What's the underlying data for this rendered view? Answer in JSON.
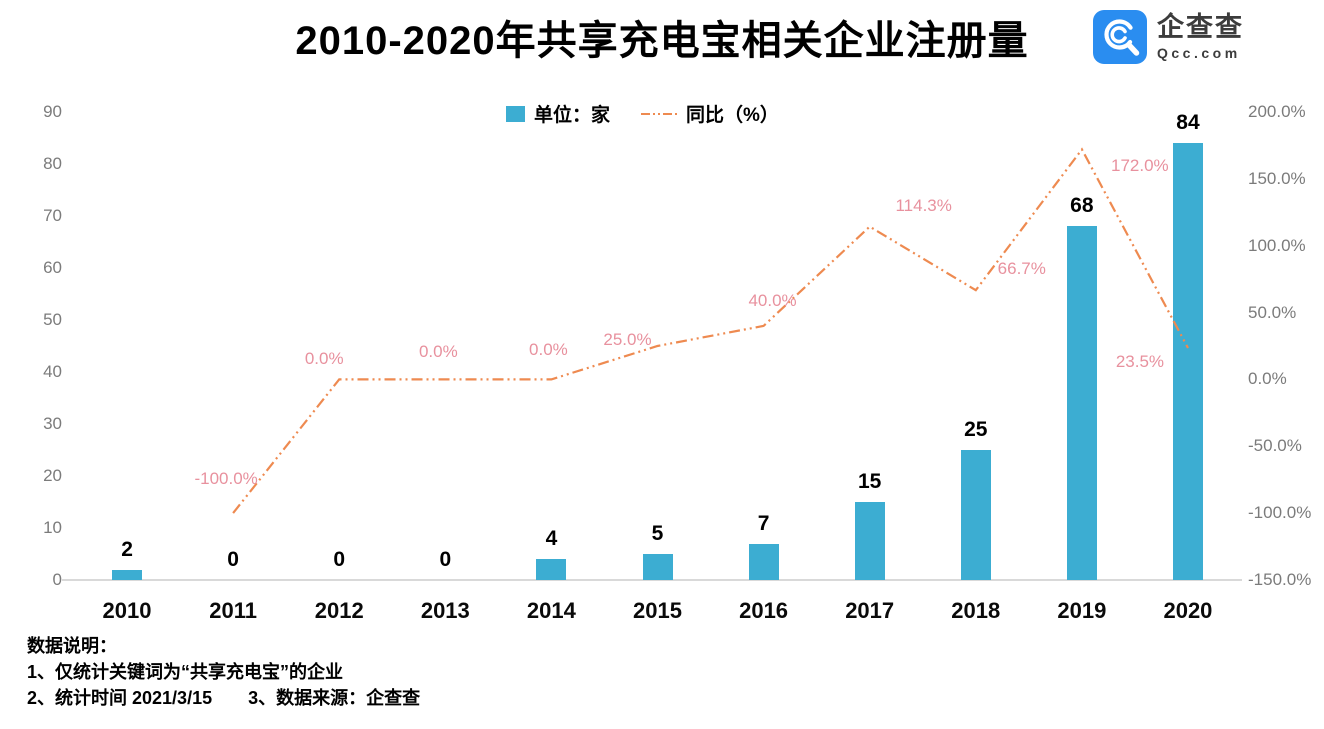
{
  "header": {
    "title": "2010-2020年共享充电宝相关企业注册量",
    "logo": {
      "name": "企查查",
      "domain": "Qcc.com",
      "brand_color": "#2a8df0"
    }
  },
  "legend": {
    "bar_label": "单位：家",
    "line_label": "同比（%）"
  },
  "chart_data": {
    "type": "bar+line",
    "title": "2010-2020年共享充电宝相关企业注册量",
    "categories": [
      "2010",
      "2011",
      "2012",
      "2013",
      "2014",
      "2015",
      "2016",
      "2017",
      "2018",
      "2019",
      "2020"
    ],
    "series": [
      {
        "name": "单位：家",
        "type": "bar",
        "axis": "left",
        "color": "#3cadd2",
        "values": [
          2,
          0,
          0,
          0,
          4,
          5,
          7,
          15,
          25,
          68,
          84
        ]
      },
      {
        "name": "同比（%）",
        "type": "line",
        "axis": "right",
        "color": "#ee8a50",
        "label_color": "#e8919e",
        "values": [
          null,
          -100.0,
          0.0,
          0.0,
          0.0,
          25.0,
          40.0,
          114.3,
          66.7,
          172.0,
          23.5
        ],
        "labels": [
          "",
          "-100.0%",
          "0.0%",
          "0.0%",
          "0.0%",
          "25.0%",
          "40.0%",
          "114.3%",
          "66.7%",
          "172.0%",
          "23.5%"
        ]
      }
    ],
    "left_axis": {
      "min": 0,
      "max": 90,
      "step": 10,
      "ticks": [
        "90",
        "80",
        "70",
        "60",
        "50",
        "40",
        "30",
        "20",
        "10",
        "0"
      ]
    },
    "right_axis": {
      "min": -150,
      "max": 200,
      "step": 50,
      "ticks": [
        "200.0%",
        "150.0%",
        "100.0%",
        "50.0%",
        "0.0%",
        "-50.0%",
        "-100.0%",
        "-150.0%"
      ]
    },
    "grid": false,
    "legend_position": "top-center"
  },
  "footer": {
    "lines": [
      "数据说明：",
      "1、仅统计关键词为“共享充电宝”的企业",
      "2、统计时间 2021/3/15　　3、数据来源：企查查"
    ]
  }
}
